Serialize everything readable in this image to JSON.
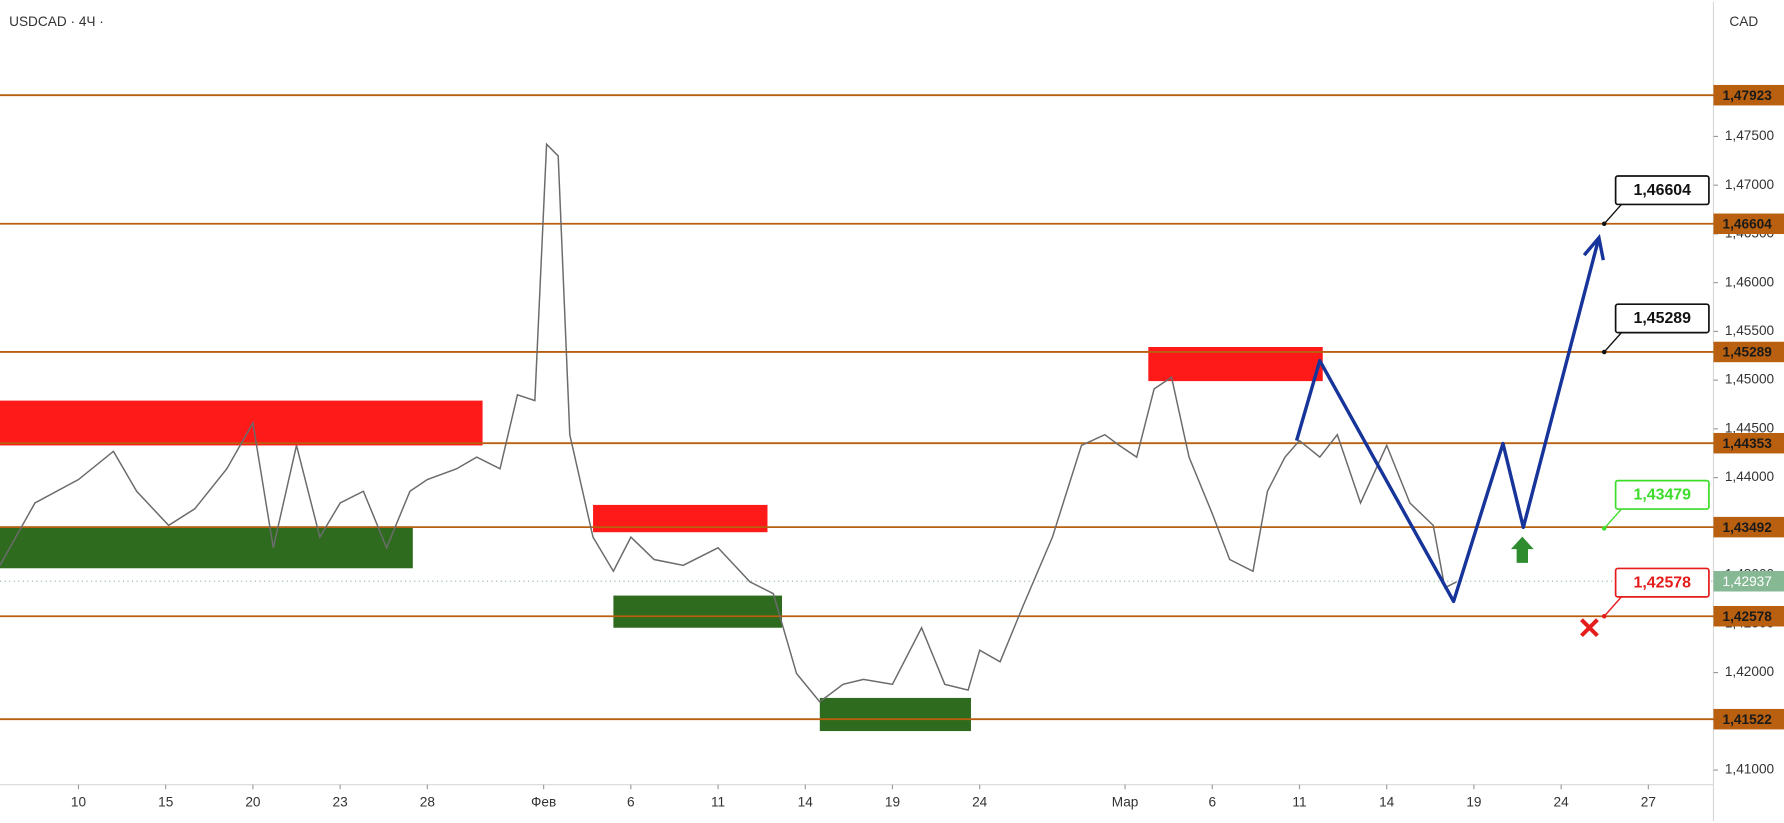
{
  "chart_data": {
    "type": "line",
    "title": "USDCAD · 4Ч ·",
    "currency": "CAD",
    "color": "#6b6b6b",
    "x": [
      -2.7,
      -1.5,
      0,
      1.2,
      2.0,
      3.1,
      4.0,
      5.1,
      6.0,
      6.7,
      7.5,
      8.3,
      9.0,
      9.8,
      10.6,
      11.4,
      12.0,
      13.0,
      13.7,
      14.5,
      15.1,
      15.7,
      16.1,
      16.5,
      16.9,
      17.7,
      18.4,
      19.0,
      19.8,
      20.8,
      22.0,
      23.1,
      23.9,
      24.7,
      25.5,
      26.3,
      27.0,
      28.0,
      29.0,
      29.8,
      30.6,
      31.0,
      31.7,
      32.5,
      33.5,
      34.5,
      35.3,
      35.8,
      36.4,
      37.0,
      37.6,
      38.2,
      39.0,
      39.6,
      40.4,
      40.9,
      41.5,
      42.0,
      42.7,
      43.3,
      44.1,
      45.0,
      45.8,
      46.6,
      47.0,
      47.4
    ],
    "values": [
      1.431,
      1.4374,
      1.4398,
      1.4427,
      1.4386,
      1.4351,
      1.4368,
      1.4409,
      1.4456,
      1.4328,
      1.4433,
      1.4339,
      1.4374,
      1.4386,
      1.4328,
      1.4386,
      1.4398,
      1.4409,
      1.4421,
      1.4409,
      1.4485,
      1.4479,
      1.4742,
      1.473,
      1.4444,
      1.4339,
      1.4304,
      1.4339,
      1.4316,
      1.431,
      1.4328,
      1.4293,
      1.4281,
      1.4199,
      1.417,
      1.4188,
      1.4193,
      1.4188,
      1.4246,
      1.4188,
      1.4182,
      1.4223,
      1.4211,
      1.4269,
      1.4339,
      1.4433,
      1.4444,
      1.4433,
      1.4421,
      1.4491,
      1.4503,
      1.4421,
      1.4363,
      1.4316,
      1.4304,
      1.4386,
      1.4421,
      1.4438,
      1.4421,
      1.4444,
      1.4374,
      1.4433,
      1.4374,
      1.4351,
      1.4287,
      1.4293
    ],
    "xlim": [
      -2.7,
      56.24
    ],
    "ylim": [
      1.4085,
      1.4888
    ],
    "xticks": [
      {
        "value": 0,
        "label": "10"
      },
      {
        "value": 3,
        "label": "15"
      },
      {
        "value": 6,
        "label": "20"
      },
      {
        "value": 9,
        "label": "23"
      },
      {
        "value": 12,
        "label": "28"
      },
      {
        "value": 16,
        "label": "Фев"
      },
      {
        "value": 19,
        "label": "6"
      },
      {
        "value": 22,
        "label": "11"
      },
      {
        "value": 25,
        "label": "14"
      },
      {
        "value": 28,
        "label": "19"
      },
      {
        "value": 31,
        "label": "24"
      },
      {
        "value": 36,
        "label": "Мар"
      },
      {
        "value": 39,
        "label": "6"
      },
      {
        "value": 42,
        "label": "11"
      },
      {
        "value": 45,
        "label": "14"
      },
      {
        "value": 48,
        "label": "19"
      },
      {
        "value": 51,
        "label": "24"
      },
      {
        "value": 54,
        "label": "27"
      }
    ],
    "yticks": [
      {
        "value": 1.41,
        "label": "1,41000"
      },
      {
        "value": 1.415,
        "label": "1,41500"
      },
      {
        "value": 1.42,
        "label": "1,42000"
      },
      {
        "value": 1.425,
        "label": "1,42500"
      },
      {
        "value": 1.43,
        "label": "1,43000"
      },
      {
        "value": 1.435,
        "label": "1,43500"
      },
      {
        "value": 1.44,
        "label": "1,44000"
      },
      {
        "value": 1.445,
        "label": "1,44500"
      },
      {
        "value": 1.45,
        "label": "1,45000"
      },
      {
        "value": 1.455,
        "label": "1,45500"
      },
      {
        "value": 1.46,
        "label": "1,46000"
      },
      {
        "value": 1.465,
        "label": "1,46500"
      },
      {
        "value": 1.47,
        "label": "1,47000"
      },
      {
        "value": 1.475,
        "label": "1,47500"
      }
    ],
    "levels": [
      {
        "value": 1.47923,
        "label": "1,47923"
      },
      {
        "value": 1.46604,
        "label": "1,46604"
      },
      {
        "value": 1.45289,
        "label": "1,45289"
      },
      {
        "value": 1.44353,
        "label": "1,44353"
      },
      {
        "value": 1.43492,
        "label": "1,43492"
      },
      {
        "value": 1.42578,
        "label": "1,42578"
      },
      {
        "value": 1.41522,
        "label": "1,41522"
      }
    ],
    "level_color": "#b8600f",
    "current_price": {
      "value": 1.42937,
      "label": "1,42937",
      "color": "#86b894"
    },
    "zones": [
      {
        "x0": -2.7,
        "x1": 13.9,
        "top": 1.4479,
        "bottom": 1.4433,
        "color": "#ff1a1a"
      },
      {
        "x0": -2.7,
        "x1": 11.5,
        "top": 1.435,
        "bottom": 1.4307,
        "color": "#2e6b1f"
      },
      {
        "x0": 17.7,
        "x1": 23.7,
        "top": 1.4372,
        "bottom": 1.4344,
        "color": "#ff1a1a"
      },
      {
        "x0": 18.4,
        "x1": 24.2,
        "top": 1.4279,
        "bottom": 1.4246,
        "color": "#2e6b1f"
      },
      {
        "x0": 25.5,
        "x1": 30.7,
        "top": 1.4174,
        "bottom": 1.414,
        "color": "#2e6b1f"
      },
      {
        "x0": 36.8,
        "x1": 42.8,
        "top": 1.4534,
        "bottom": 1.4499,
        "color": "#ff1a1a"
      }
    ],
    "projection": {
      "x": [
        41.9,
        42.7,
        47.3,
        49.0,
        49.7,
        52.3
      ],
      "values": [
        1.4438,
        1.452,
        1.4273,
        1.4435,
        1.4349,
        1.4646
      ],
      "color": "#16349a"
    },
    "annotations": [
      {
        "value": 1.46604,
        "label": "1,46604",
        "color": "#111111"
      },
      {
        "value": 1.45289,
        "label": "1,45289",
        "color": "#111111"
      },
      {
        "value": 1.43479,
        "label": "1,43479",
        "color": "#3ddc2a"
      },
      {
        "value": 1.42578,
        "label": "1,42578",
        "color": "#e51c1c"
      }
    ]
  }
}
